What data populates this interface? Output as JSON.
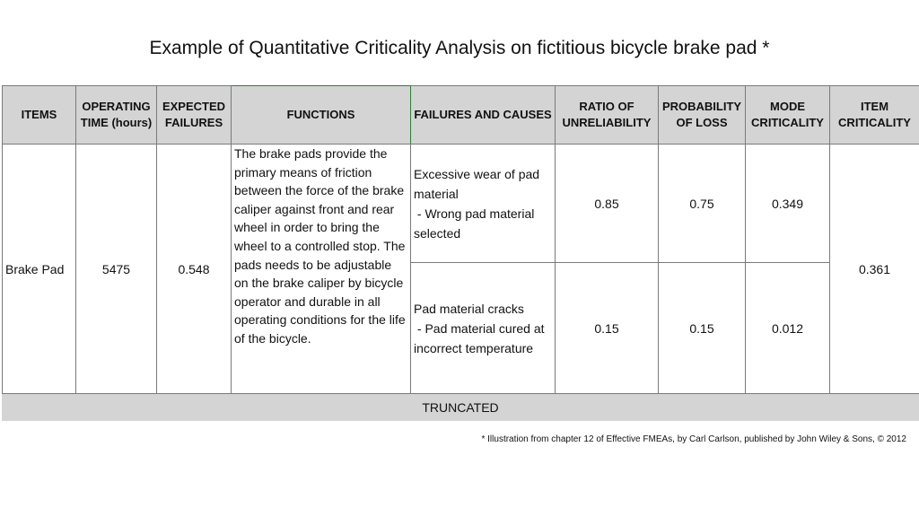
{
  "title": "Example of Quantitative Criticality Analysis on fictitious bicycle brake pad *",
  "table": {
    "headers": {
      "items": "ITEMS",
      "operating_time": "OPERATING TIME (hours)",
      "expected_failures": "EXPECTED FAILURES",
      "functions": "FUNCTIONS",
      "failures_causes": "FAILURES AND CAUSES",
      "ratio_unreliability": "RATIO OF UNRELIABILITY",
      "probability_loss": "PROBABILITY OF LOSS",
      "mode_criticality": "MODE CRITICALITY",
      "item_criticality": "ITEM CRITICALITY"
    },
    "item": "Brake Pad",
    "operating_time": "5475",
    "expected_failures": "0.548",
    "functions": "The brake pads provide the primary means of friction between the force of the brake caliper against front and rear wheel in order to bring the wheel to a controlled stop. The pads needs to be adjustable on the brake caliper by bicycle operator and durable in all operating conditions for the life of the bicycle.",
    "modes": [
      {
        "failure": "Excessive wear of pad material",
        "cause": " - Wrong pad material selected",
        "ratio": "0.85",
        "probability": "0.75",
        "mode_criticality": "0.349"
      },
      {
        "failure": "Pad material cracks",
        "cause": " - Pad material cured at incorrect temperature",
        "ratio": "0.15",
        "probability": "0.15",
        "mode_criticality": "0.012"
      }
    ],
    "item_criticality": "0.361",
    "truncated_label": "TRUNCATED"
  },
  "footnote": "* Illustration from chapter 12 of Effective FMEAs, by Carl Carlson, published by John Wiley & Sons, © 2012"
}
